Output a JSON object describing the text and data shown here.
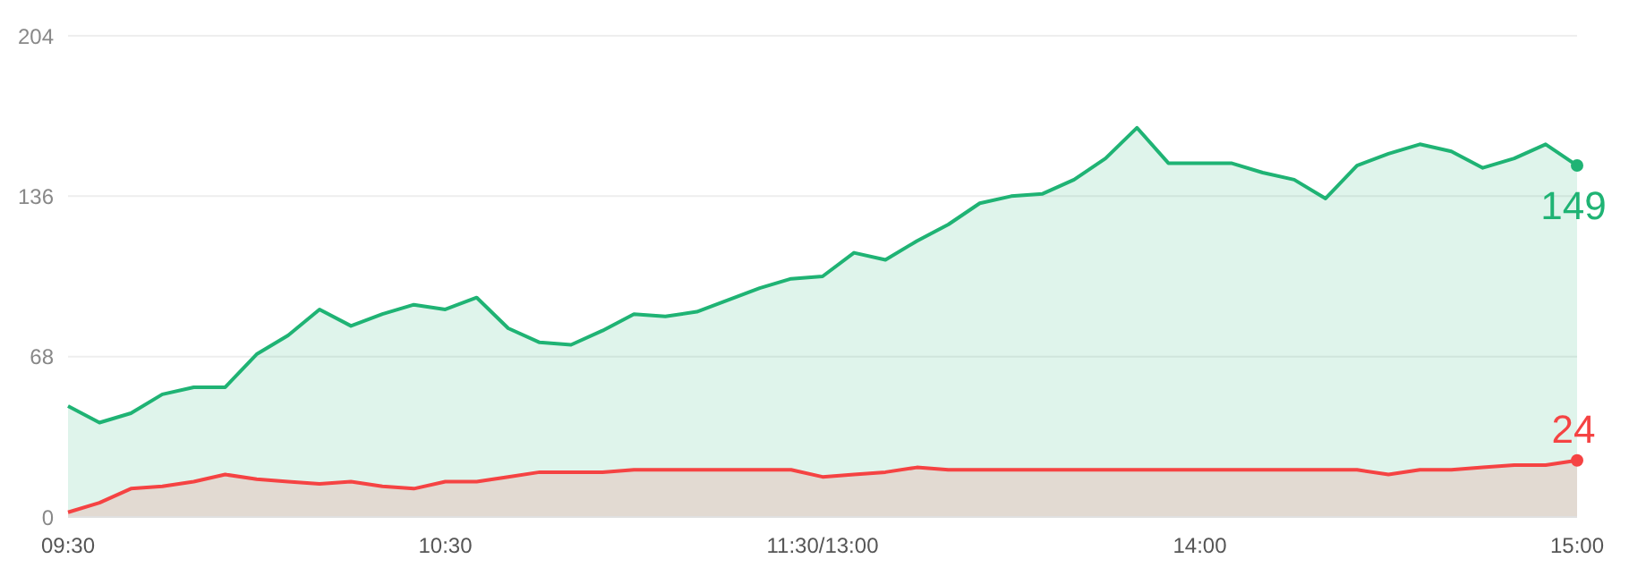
{
  "chart_data": {
    "type": "area",
    "categories": [
      "09:30",
      null,
      null,
      null,
      null,
      null,
      null,
      null,
      null,
      null,
      null,
      null,
      "10:30",
      null,
      null,
      null,
      null,
      null,
      null,
      null,
      null,
      null,
      null,
      null,
      "11:30/13:00",
      null,
      null,
      null,
      null,
      null,
      null,
      null,
      null,
      null,
      null,
      null,
      "14:00",
      null,
      null,
      null,
      null,
      null,
      null,
      null,
      null,
      null,
      null,
      null,
      "15:00"
    ],
    "series": [
      {
        "color": "#1fb374",
        "values": [
          47,
          40,
          44,
          52,
          55,
          55,
          69,
          77,
          88,
          81,
          86,
          90,
          88,
          93,
          80,
          74,
          73,
          79,
          86,
          85,
          87,
          92,
          97,
          101,
          102,
          112,
          109,
          117,
          124,
          133,
          136,
          137,
          143,
          152,
          165,
          150,
          150,
          150,
          146,
          143,
          135,
          149,
          154,
          158,
          155,
          148,
          152,
          158,
          149
        ],
        "value_labels": [
          null,
          null,
          null,
          null,
          null,
          null,
          null,
          null,
          null,
          null,
          null,
          null,
          null,
          null,
          null,
          null,
          null,
          null,
          null,
          null,
          null,
          null,
          null,
          null,
          null,
          null,
          null,
          null,
          null,
          null,
          null,
          null,
          null,
          null,
          null,
          null,
          null,
          null,
          null,
          null,
          null,
          null,
          null,
          null,
          null,
          null,
          null,
          null,
          "149"
        ]
      },
      {
        "color": "#f54343",
        "values": [
          2,
          6,
          12,
          13,
          15,
          18,
          16,
          15,
          14,
          15,
          13,
          12,
          15,
          15,
          17,
          19,
          19,
          19,
          20,
          20,
          20,
          20,
          20,
          20,
          17,
          18,
          19,
          21,
          20,
          20,
          20,
          20,
          20,
          20,
          20,
          20,
          20,
          20,
          20,
          20,
          20,
          20,
          18,
          20,
          20,
          21,
          22,
          22,
          24
        ],
        "value_labels": [
          null,
          null,
          null,
          null,
          null,
          null,
          null,
          null,
          null,
          null,
          null,
          null,
          null,
          null,
          null,
          null,
          null,
          null,
          null,
          null,
          null,
          null,
          null,
          null,
          null,
          null,
          null,
          null,
          null,
          null,
          null,
          null,
          null,
          null,
          null,
          null,
          null,
          null,
          null,
          null,
          null,
          null,
          null,
          null,
          null,
          null,
          null,
          null,
          "24"
        ]
      }
    ],
    "ylim": [
      0,
      204
    ],
    "yticks": [
      0,
      68,
      136,
      204
    ],
    "grid": "y",
    "legend": false
  }
}
